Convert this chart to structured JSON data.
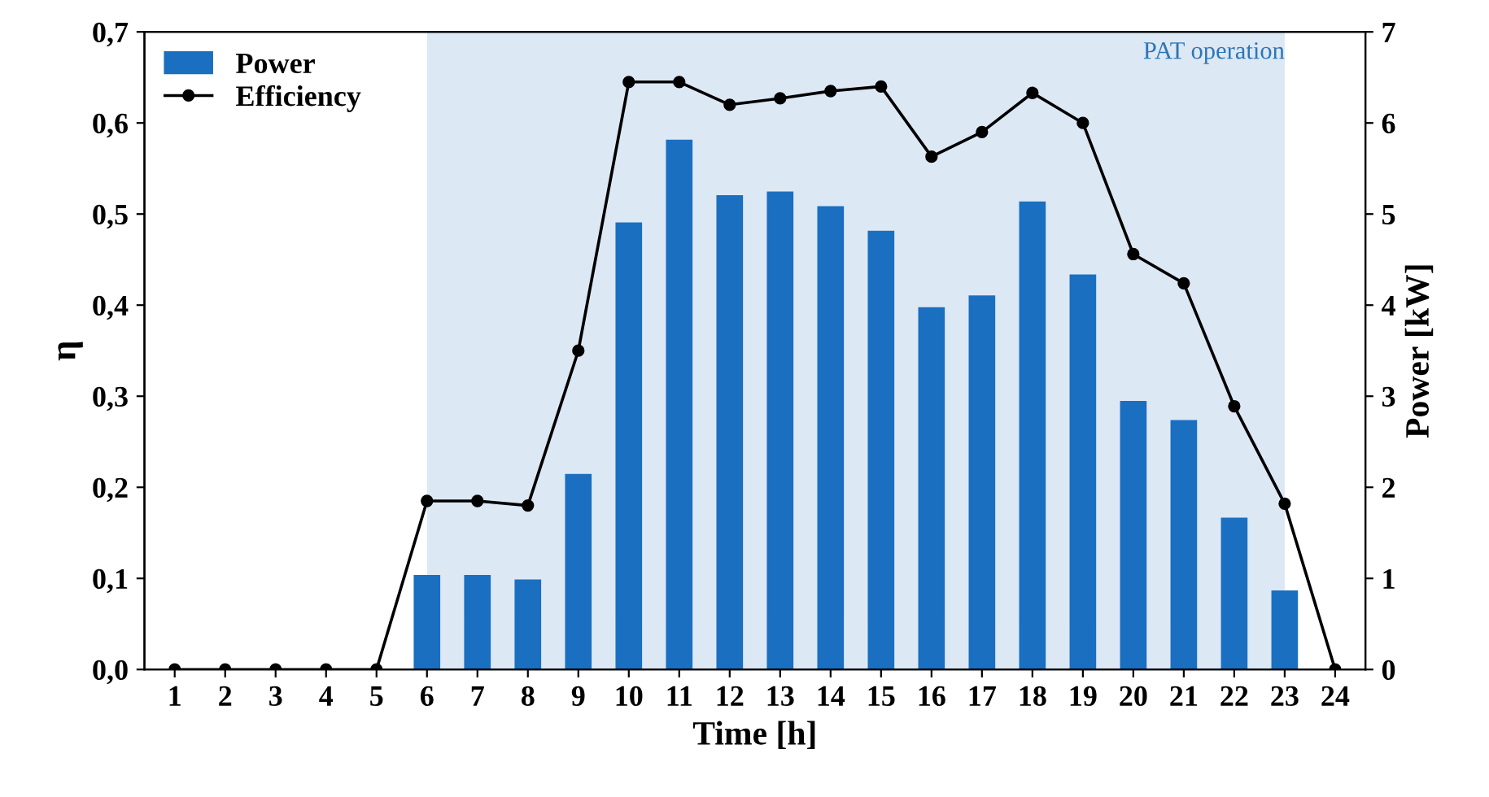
{
  "chart_data": {
    "type": "bar",
    "xlabel": "Time [h]",
    "ylabel": "η",
    "y2label": "Power [kW]",
    "x": [
      1,
      2,
      3,
      4,
      5,
      6,
      7,
      8,
      9,
      10,
      11,
      12,
      13,
      14,
      15,
      16,
      17,
      18,
      19,
      20,
      21,
      22,
      23,
      24
    ],
    "xlim": [
      0.4,
      24.6
    ],
    "xticks": [
      1,
      2,
      3,
      4,
      5,
      6,
      7,
      8,
      9,
      10,
      11,
      12,
      13,
      14,
      15,
      16,
      17,
      18,
      19,
      20,
      21,
      22,
      23,
      24
    ],
    "ylim": [
      0,
      0.7
    ],
    "yticks": [
      {
        "value": 0,
        "label": "0,0"
      },
      {
        "value": 0.1,
        "label": "0,1"
      },
      {
        "value": 0.2,
        "label": "0,2"
      },
      {
        "value": 0.3,
        "label": "0,3"
      },
      {
        "value": 0.4,
        "label": "0,4"
      },
      {
        "value": 0.5,
        "label": "0,5"
      },
      {
        "value": 0.6,
        "label": "0,6"
      },
      {
        "value": 0.7,
        "label": "0,7"
      }
    ],
    "y2lim": [
      0,
      7
    ],
    "y2ticks": [
      0,
      1,
      2,
      3,
      4,
      5,
      6,
      7
    ],
    "series": [
      {
        "name": "Power",
        "axis": "y2",
        "color": "#1a6fc0",
        "values": [
          null,
          null,
          null,
          null,
          null,
          1.03,
          1.03,
          0.98,
          2.14,
          4.9,
          5.81,
          5.2,
          5.24,
          5.08,
          4.81,
          3.97,
          4.1,
          5.13,
          4.33,
          2.94,
          2.73,
          1.66,
          0.86,
          null
        ]
      },
      {
        "name": "Efficiency",
        "type": "line",
        "axis": "y",
        "color": "#000000",
        "marker": "circle",
        "values": [
          0,
          0,
          0,
          0,
          0,
          0.185,
          0.185,
          0.18,
          0.35,
          0.645,
          0.645,
          0.62,
          0.627,
          0.635,
          0.64,
          0.563,
          0.59,
          0.633,
          0.6,
          0.456,
          0.424,
          0.289,
          0.182,
          0
        ]
      }
    ],
    "bands": [
      {
        "axis": "x",
        "from": 6,
        "to": 23,
        "label": "PAT operation",
        "color": "#dde8f5"
      }
    ],
    "legend": "top left",
    "grid": false
  }
}
